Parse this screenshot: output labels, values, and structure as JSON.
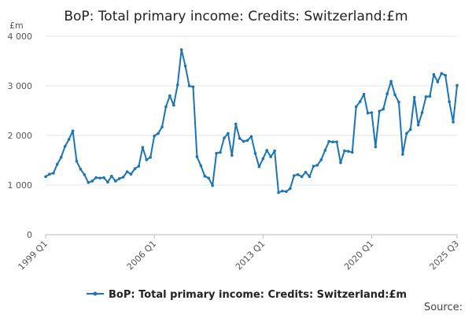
{
  "chart_data": {
    "type": "line",
    "title": "BoP: Total primary income: Credits: Switzerland:£m",
    "unit_label": "£m",
    "source_label": "Source:",
    "xlabel": "",
    "ylabel": "",
    "ylim": [
      0,
      4000
    ],
    "y_ticks": [
      0,
      1000,
      2000,
      3000,
      4000
    ],
    "y_tick_labels": [
      "0",
      "1 000",
      "2 000",
      "3 000",
      "4 000"
    ],
    "x_tick_labels": [
      {
        "index": 0,
        "label": "1999 Q1"
      },
      {
        "index": 28,
        "label": "2006 Q1"
      },
      {
        "index": 56,
        "label": "2013 Q1"
      },
      {
        "index": 84,
        "label": "2020 Q1"
      },
      {
        "index": 106,
        "label": "2025 Q3"
      }
    ],
    "grid": true,
    "legend_position": "bottom",
    "line_color": "#1a74b6",
    "series": [
      {
        "name": "BoP: Total primary income: Credits: Switzerland:£m",
        "start": "1999 Q1",
        "end": "2025 Q3",
        "values": [
          1170,
          1220,
          1240,
          1420,
          1560,
          1780,
          1920,
          2090,
          1480,
          1320,
          1210,
          1050,
          1080,
          1150,
          1140,
          1150,
          1060,
          1180,
          1080,
          1130,
          1160,
          1270,
          1220,
          1330,
          1380,
          1760,
          1510,
          1560,
          1990,
          2040,
          2170,
          2580,
          2800,
          2610,
          3020,
          3730,
          3400,
          3000,
          2980,
          1570,
          1390,
          1180,
          1140,
          990,
          1640,
          1660,
          1950,
          2040,
          1600,
          2230,
          1940,
          1880,
          1900,
          1980,
          1640,
          1370,
          1530,
          1700,
          1570,
          1690,
          850,
          880,
          870,
          930,
          1190,
          1210,
          1170,
          1260,
          1170,
          1380,
          1400,
          1510,
          1700,
          1880,
          1870,
          1870,
          1450,
          1690,
          1680,
          1660,
          2580,
          2680,
          2830,
          2450,
          2460,
          1770,
          2490,
          2530,
          2840,
          3090,
          2820,
          2670,
          1620,
          2040,
          2120,
          2770,
          2210,
          2460,
          2780,
          2790,
          3230,
          3080,
          3250,
          3210,
          2680,
          2270,
          3010
        ]
      }
    ]
  }
}
